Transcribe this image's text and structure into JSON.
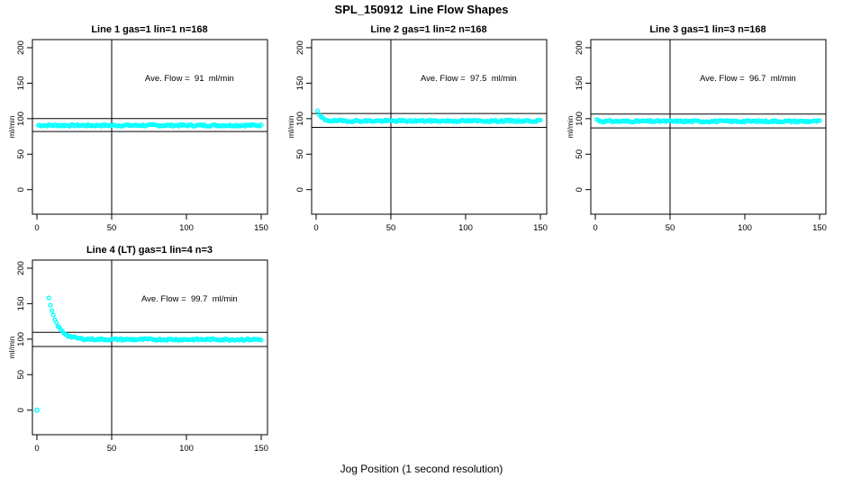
{
  "figure": {
    "title": "SPL_150912  Line Flow Shapes",
    "xlabel": "Jog Position (1 second resolution)",
    "ylabel": "ml/min",
    "background": "#ffffff",
    "point_color": "#00ffff",
    "axis_color": "#000000"
  },
  "chart_data": [
    {
      "type": "scatter",
      "title": "Line 1 gas=1 lin=1 n=168",
      "annotation": "Ave. Flow =  91  ml/min",
      "ave_flow_ml_min": 91,
      "x_ticks": [
        0,
        50,
        100,
        150
      ],
      "y_ticks": [
        0,
        50,
        100,
        150,
        200
      ],
      "x_range": [
        -3,
        154.2
      ],
      "y_range": [
        -34.6,
        211.4
      ],
      "vline_x": 50,
      "hlines": [
        100.1,
        81.9
      ],
      "ann_pos": [
        102,
        153
      ],
      "series": {
        "x_start": 1,
        "x_end": 150,
        "start_value": 90.5,
        "settle": 90.5,
        "tau": 0,
        "noise": 1.3,
        "seed": 7
      },
      "outliers": []
    },
    {
      "type": "scatter",
      "title": "Line 2 gas=1 lin=2 n=168",
      "annotation": "Ave. Flow =  97.5  ml/min",
      "ave_flow_ml_min": 97.5,
      "x_ticks": [
        0,
        50,
        100,
        150
      ],
      "y_ticks": [
        0,
        50,
        100,
        150,
        200
      ],
      "x_range": [
        -3,
        154.2
      ],
      "y_range": [
        -34.6,
        211.4
      ],
      "vline_x": 50,
      "hlines": [
        107.3,
        87.8
      ],
      "ann_pos": [
        102,
        153
      ],
      "series": {
        "x_start": 1,
        "x_end": 150,
        "start_value": 110,
        "settle": 96.8,
        "tau": 2.5,
        "noise": 1.3,
        "seed": 19
      },
      "outliers": []
    },
    {
      "type": "scatter",
      "title": "Line 3 gas=1 lin=3 n=168",
      "annotation": "Ave. Flow =  96.7  ml/min",
      "ave_flow_ml_min": 96.7,
      "x_ticks": [
        0,
        50,
        100,
        150
      ],
      "y_ticks": [
        0,
        50,
        100,
        150,
        200
      ],
      "x_range": [
        -3,
        154.2
      ],
      "y_range": [
        -34.6,
        211.4
      ],
      "vline_x": 50,
      "hlines": [
        106.4,
        87.0
      ],
      "ann_pos": [
        102,
        153
      ],
      "series": {
        "x_start": 1,
        "x_end": 150,
        "start_value": 99,
        "settle": 96.3,
        "tau": 1.2,
        "noise": 1.3,
        "seed": 31
      },
      "outliers": []
    },
    {
      "type": "scatter",
      "title": "Line 4 (LT) gas=1 lin=4 n=3",
      "annotation": "Ave. Flow =  99.7  ml/min",
      "ave_flow_ml_min": 99.7,
      "x_ticks": [
        0,
        50,
        100,
        150
      ],
      "y_ticks": [
        0,
        50,
        100,
        150,
        200
      ],
      "x_range": [
        -3,
        154.2
      ],
      "y_range": [
        -34.6,
        211.4
      ],
      "vline_x": 50,
      "hlines": [
        109.7,
        89.7
      ],
      "ann_pos": [
        102,
        153
      ],
      "series": {
        "x_start": 8,
        "x_end": 150,
        "start_value": 157,
        "settle": 99.5,
        "tau": 5.5,
        "noise": 1.3,
        "seed": 43
      },
      "outliers": [
        [
          0,
          0
        ]
      ]
    }
  ]
}
